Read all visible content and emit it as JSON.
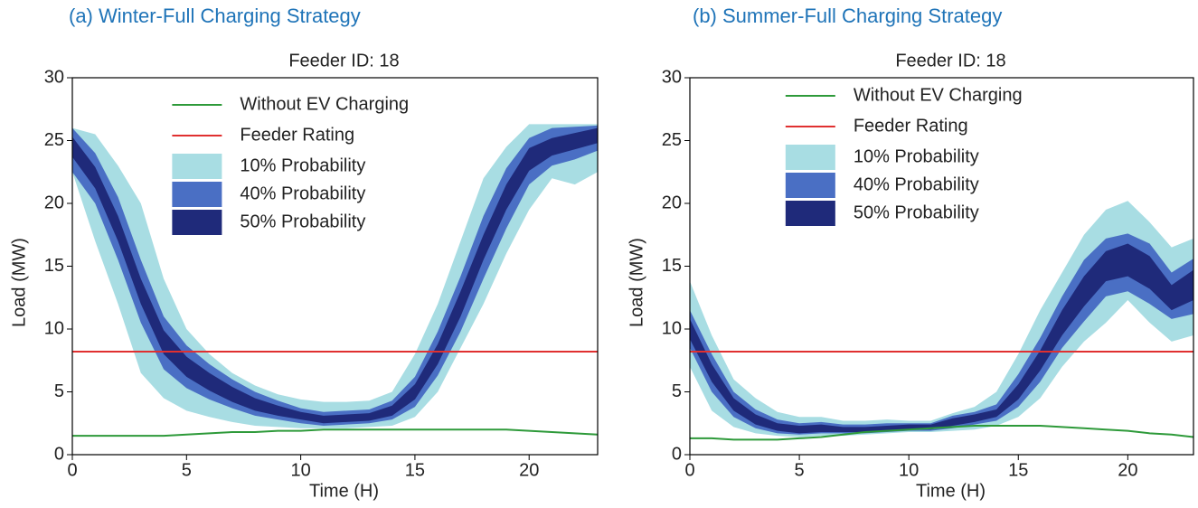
{
  "chart_data": [
    {
      "type": "band",
      "title": "(a) Winter-Full Charging Strategy",
      "subtitle": "Feeder ID: 18",
      "x_label": "Time (H)",
      "y_label": "Load (MW)",
      "x": [
        0,
        1,
        2,
        3,
        4,
        5,
        6,
        7,
        8,
        9,
        10,
        11,
        12,
        13,
        14,
        15,
        16,
        17,
        18,
        19,
        20,
        21,
        22,
        23
      ],
      "xlim": [
        0,
        23
      ],
      "xticks": [
        0,
        5,
        10,
        15,
        20
      ],
      "ylim": [
        0,
        30
      ],
      "yticks": [
        0,
        5,
        10,
        15,
        20,
        25,
        30
      ],
      "legend": "upper center",
      "series": [
        {
          "name": "Without EV Charging",
          "color": "#2e9a3a",
          "values": [
            1.5,
            1.5,
            1.5,
            1.5,
            1.5,
            1.6,
            1.7,
            1.8,
            1.8,
            1.9,
            1.9,
            2.0,
            2.0,
            2.0,
            2.0,
            2.0,
            2.0,
            2.0,
            2.0,
            2.0,
            1.9,
            1.8,
            1.7,
            1.6
          ]
        },
        {
          "name": "Feeder Rating",
          "color": "#e03030",
          "values": [
            8.2,
            8.2,
            8.2,
            8.2,
            8.2,
            8.2,
            8.2,
            8.2,
            8.2,
            8.2,
            8.2,
            8.2,
            8.2,
            8.2,
            8.2,
            8.2,
            8.2,
            8.2,
            8.2,
            8.2,
            8.2,
            8.2,
            8.2,
            8.2
          ]
        },
        {
          "name": "10% Probability",
          "color": "#a8dde3",
          "lower": [
            22.5,
            17,
            12,
            6.5,
            4.5,
            3.5,
            3,
            2.6,
            2.3,
            2.2,
            2.1,
            2.1,
            2.1,
            2.2,
            2.3,
            3,
            5,
            8.5,
            12,
            16,
            19.5,
            22,
            21.5,
            22.5
          ],
          "upper": [
            26,
            25.5,
            23,
            20,
            14,
            10,
            8,
            6.5,
            5.5,
            4.8,
            4.4,
            4.2,
            4.2,
            4.3,
            5,
            8,
            12,
            17,
            22,
            24.5,
            26.3,
            26.3,
            26.3,
            26.3
          ]
        },
        {
          "name": "40% Probability",
          "color": "#4a6fc4",
          "lower": [
            22.5,
            20,
            15.5,
            10.5,
            6.8,
            5.3,
            4.4,
            3.7,
            3.1,
            2.8,
            2.5,
            2.3,
            2.4,
            2.5,
            2.8,
            3.8,
            6.3,
            9.8,
            14,
            18,
            21.5,
            23,
            23.5,
            24.2
          ],
          "upper": [
            26,
            24,
            20.5,
            15.5,
            11,
            8.7,
            7.2,
            6,
            5,
            4.3,
            3.7,
            3.4,
            3.5,
            3.6,
            4.3,
            6.2,
            9.8,
            14.2,
            19,
            22.8,
            25.2,
            26,
            26.1,
            26.2
          ]
        },
        {
          "name": "50% Probability",
          "color": "#1f2a7a",
          "lower": [
            23.7,
            21.2,
            17,
            12,
            8,
            6.2,
            5.1,
            4.2,
            3.5,
            3.1,
            2.8,
            2.5,
            2.6,
            2.7,
            3.1,
            4.4,
            7.2,
            11,
            15.5,
            19.5,
            22.6,
            23.8,
            24.3,
            24.8
          ],
          "upper": [
            25.3,
            22.9,
            19,
            14,
            9.9,
            7.8,
            6.5,
            5.4,
            4.5,
            3.9,
            3.4,
            3.1,
            3.2,
            3.3,
            3.9,
            5.6,
            8.8,
            13,
            17.5,
            21.5,
            24.4,
            25.2,
            25.6,
            26.0
          ]
        }
      ]
    },
    {
      "type": "band",
      "title": "(b) Summer-Full Charging Strategy",
      "subtitle": "Feeder ID: 18",
      "x_label": "Time (H)",
      "y_label": "Load (MW)",
      "x": [
        0,
        1,
        2,
        3,
        4,
        5,
        6,
        7,
        8,
        9,
        10,
        11,
        12,
        13,
        14,
        15,
        16,
        17,
        18,
        19,
        20,
        21,
        22,
        23
      ],
      "xlim": [
        0,
        23
      ],
      "xticks": [
        0,
        5,
        10,
        15,
        20
      ],
      "ylim": [
        0,
        30
      ],
      "yticks": [
        0,
        5,
        10,
        15,
        20,
        25,
        30
      ],
      "legend": "upper center",
      "series": [
        {
          "name": "Without EV Charging",
          "color": "#2e9a3a",
          "values": [
            1.3,
            1.3,
            1.2,
            1.2,
            1.2,
            1.3,
            1.4,
            1.6,
            1.8,
            1.9,
            2,
            2.1,
            2.2,
            2.3,
            2.3,
            2.3,
            2.3,
            2.2,
            2.1,
            2,
            1.9,
            1.7,
            1.6,
            1.4
          ]
        },
        {
          "name": "Feeder Rating",
          "color": "#e03030",
          "values": [
            8.2,
            8.2,
            8.2,
            8.2,
            8.2,
            8.2,
            8.2,
            8.2,
            8.2,
            8.2,
            8.2,
            8.2,
            8.2,
            8.2,
            8.2,
            8.2,
            8.2,
            8.2,
            8.2,
            8.2,
            8.2,
            8.2,
            8.2,
            8.2
          ]
        },
        {
          "name": "10% Probability",
          "color": "#a8dde3",
          "lower": [
            7,
            3.5,
            2.2,
            1.7,
            1.5,
            1.4,
            1.5,
            1.5,
            1.6,
            1.7,
            1.8,
            1.8,
            1.9,
            2,
            2.3,
            3,
            4.5,
            7,
            9,
            10.5,
            12.3,
            10.5,
            9,
            9.5
          ],
          "upper": [
            13.8,
            9.5,
            6,
            4.5,
            3.4,
            3,
            3,
            2.7,
            2.7,
            2.8,
            2.7,
            2.7,
            3.3,
            3.8,
            5,
            8,
            11.5,
            14.5,
            17.5,
            19.5,
            20.2,
            18.5,
            16.5,
            17.2
          ]
        },
        {
          "name": "40% Probability",
          "color": "#4a6fc4",
          "lower": [
            8.5,
            5,
            3,
            2.1,
            1.7,
            1.6,
            1.7,
            1.7,
            1.7,
            1.8,
            1.9,
            1.9,
            2.1,
            2.4,
            2.7,
            3.8,
            5.8,
            8.5,
            10.6,
            12.6,
            13,
            12,
            10.8,
            11.2
          ],
          "upper": [
            11.5,
            8,
            5,
            3.6,
            2.8,
            2.5,
            2.6,
            2.4,
            2.4,
            2.5,
            2.5,
            2.5,
            3.1,
            3.4,
            4,
            6.4,
            9.3,
            12.6,
            15.5,
            17.2,
            17.6,
            16.8,
            14.5,
            15.6
          ]
        },
        {
          "name": "50% Probability",
          "color": "#1f2a7a",
          "lower": [
            9.2,
            5.8,
            3.5,
            2.4,
            1.9,
            1.7,
            1.8,
            1.8,
            1.8,
            1.9,
            2,
            2,
            2.3,
            2.6,
            3,
            4.4,
            6.7,
            9.5,
            11.8,
            13.8,
            14.2,
            13.2,
            11.5,
            12.3
          ],
          "upper": [
            10.8,
            7.2,
            4.5,
            3.2,
            2.5,
            2.3,
            2.4,
            2.2,
            2.2,
            2.3,
            2.4,
            2.4,
            2.9,
            3.2,
            3.6,
            5.6,
            8.3,
            11.5,
            14.2,
            16.2,
            16.8,
            15.8,
            13.5,
            14.7
          ]
        }
      ]
    }
  ]
}
